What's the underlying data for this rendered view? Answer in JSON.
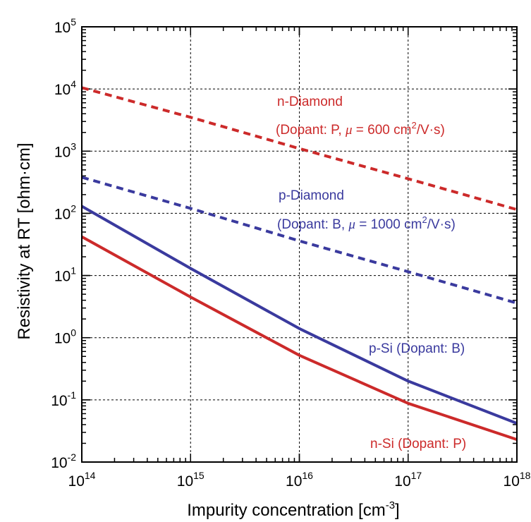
{
  "chart_data": {
    "type": "line",
    "xlabel": "Impurity concentration [cm",
    "xlabel_sup": "-3",
    "xlabel_end": "]",
    "ylabel": "Resistivity at RT [ohm·cm]",
    "x_scale": "log",
    "y_scale": "log",
    "xlim": [
      100000000000000.0,
      1e+18
    ],
    "ylim": [
      0.01,
      100000
    ],
    "grid": true,
    "x_ticks": [
      {
        "base": "10",
        "exp": "14"
      },
      {
        "base": "10",
        "exp": "15"
      },
      {
        "base": "10",
        "exp": "16"
      },
      {
        "base": "10",
        "exp": "17"
      },
      {
        "base": "10",
        "exp": "18"
      }
    ],
    "y_ticks": [
      {
        "base": "10",
        "exp": "-2"
      },
      {
        "base": "10",
        "exp": "-1"
      },
      {
        "base": "10",
        "exp": "0"
      },
      {
        "base": "10",
        "exp": "1"
      },
      {
        "base": "10",
        "exp": "2"
      },
      {
        "base": "10",
        "exp": "3"
      },
      {
        "base": "10",
        "exp": "4"
      },
      {
        "base": "10",
        "exp": "5"
      }
    ],
    "colors": {
      "red": "#cc2a2a",
      "blue": "#3a3a9e"
    },
    "series": [
      {
        "key": "n-diamond",
        "color": "red",
        "style": "dashed",
        "x": [
          100000000000000.0,
          1000000000000000.0,
          1e+16,
          1e+17,
          1e+18
        ],
        "y": [
          10500,
          3500,
          1100,
          360,
          115
        ]
      },
      {
        "key": "p-diamond",
        "color": "blue",
        "style": "dashed",
        "x": [
          100000000000000.0,
          1000000000000000.0,
          1e+16,
          1e+17,
          1e+18
        ],
        "y": [
          380,
          120,
          36,
          11.5,
          3.6
        ]
      },
      {
        "key": "p-si",
        "color": "blue",
        "style": "solid",
        "x": [
          100000000000000.0,
          1000000000000000.0,
          1e+16,
          1e+17,
          1e+18
        ],
        "y": [
          130,
          13,
          1.4,
          0.2,
          0.042
        ]
      },
      {
        "key": "n-si",
        "color": "red",
        "style": "solid",
        "x": [
          100000000000000.0,
          1000000000000000.0,
          1e+16,
          1e+17,
          1e+18
        ],
        "y": [
          42,
          4.5,
          0.52,
          0.088,
          0.023
        ]
      }
    ],
    "annotations": {
      "n_diamond_name": "n-Diamond",
      "n_diamond_dopant_a": "(Dopant: P, ",
      "n_diamond_mu": "μ",
      "n_diamond_dopant_b": " = 600 cm",
      "n_diamond_sup": "2",
      "n_diamond_dopant_c": "/V·s)",
      "p_diamond_name": "p-Diamond",
      "p_diamond_dopant_a": "(Dopant: B, ",
      "p_diamond_mu": "μ",
      "p_diamond_dopant_b": " = 1000 cm",
      "p_diamond_sup": "2",
      "p_diamond_dopant_c": "/V·s)",
      "p_si": "p-Si (Dopant: B)",
      "n_si": "n-Si (Dopant: P)"
    }
  }
}
